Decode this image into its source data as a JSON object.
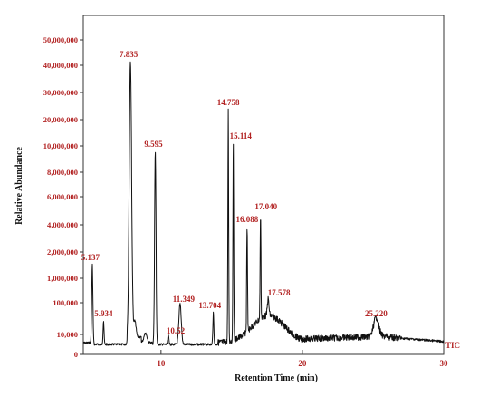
{
  "chart_data": {
    "type": "line",
    "xlabel": "Retention Time (min)",
    "ylabel": "Relative Abundance",
    "trace_label": "TIC",
    "xlim": [
      4.5,
      30
    ],
    "x_ticks": [
      {
        "value": 10,
        "label": "10"
      },
      {
        "value": 20,
        "label": "20"
      },
      {
        "value": 30,
        "label": "30"
      }
    ],
    "y_ticks": [
      "0",
      "10,000",
      "100,000",
      "1,000,000",
      "2,000,000",
      "4,000,000",
      "6,000,000",
      "8,000,000",
      "10,000,000",
      "20,000,000",
      "30,000,000",
      "40,000,000",
      "50,000,000"
    ],
    "peaks": [
      {
        "rt": 5.137,
        "label": "5.137"
      },
      {
        "rt": 5.934,
        "label": "5.934"
      },
      {
        "rt": 7.835,
        "label": "7.835"
      },
      {
        "rt": 9.595,
        "label": "9.595"
      },
      {
        "rt": 10.52,
        "label": "10.52"
      },
      {
        "rt": 11.349,
        "label": "11.349"
      },
      {
        "rt": 13.704,
        "label": "13.704"
      },
      {
        "rt": 14.758,
        "label": "14.758"
      },
      {
        "rt": 15.114,
        "label": "15.114"
      },
      {
        "rt": 16.088,
        "label": "16.088"
      },
      {
        "rt": 17.04,
        "label": "17.040"
      },
      {
        "rt": 17.578,
        "label": "17.578"
      },
      {
        "rt": 25.22,
        "label": "25.220"
      }
    ],
    "colors": {
      "trace": "#111111",
      "labels": "#b22222",
      "axis": "#333333"
    }
  }
}
